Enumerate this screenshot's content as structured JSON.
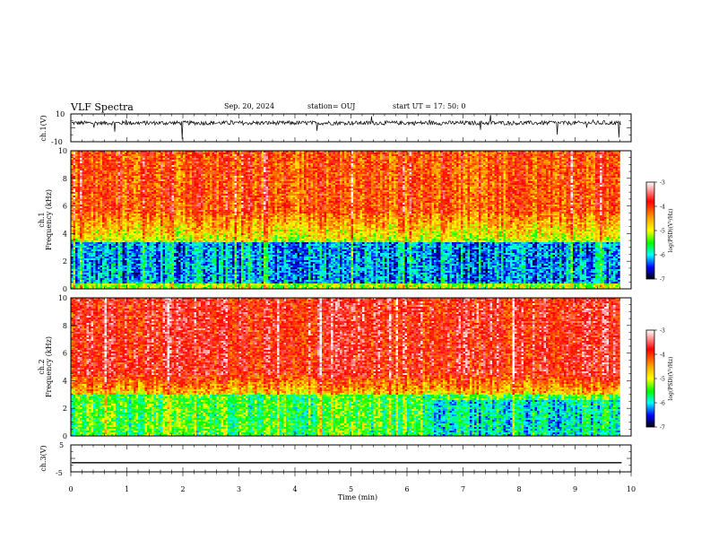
{
  "header": {
    "title": "VLF Spectra",
    "date": "Sep. 20, 2024",
    "station": "station= OUJ",
    "start": "start  UT  =   17: 50: 0"
  },
  "chart_data": [
    {
      "type": "line",
      "panel": "ch1-waveform",
      "ylabel": "ch.1(V)",
      "ylim": [
        -10,
        10
      ],
      "yticks": [
        "10",
        "-10"
      ],
      "description_values": {
        "baseline": 3.5,
        "noise_spread": 1.5
      }
    },
    {
      "type": "heatmap",
      "panel": "ch1-spectrogram",
      "ylabel_line1": "ch.1",
      "ylabel_line2": "Frequency (kHz)",
      "ylim": [
        0,
        10
      ],
      "yticks": [
        "0",
        "2",
        "4",
        "6",
        "8",
        "10"
      ],
      "xlim": [
        0,
        9.83
      ],
      "colorbar": {
        "label": "log(PSD)(V²/Hz)",
        "range": [
          -7,
          -3
        ],
        "ticks": [
          "-3",
          "-4",
          "-5",
          "-6",
          "-7"
        ]
      }
    },
    {
      "type": "heatmap",
      "panel": "ch2-spectrogram",
      "ylabel_line1": "ch.2",
      "ylabel_line2": "Frequency (kHz)",
      "ylim": [
        0,
        10
      ],
      "yticks": [
        "0",
        "2",
        "4",
        "6",
        "8",
        "10"
      ],
      "xlim": [
        0,
        9.83
      ],
      "colorbar": {
        "label": "log(PSD)(V²/Hz)",
        "range": [
          -7,
          -3
        ],
        "ticks": [
          "-3",
          "-4",
          "-5",
          "-6",
          "-7"
        ]
      }
    },
    {
      "type": "line",
      "panel": "ch3-waveform",
      "ylabel": "ch.3(V)",
      "ylim": [
        -5,
        5
      ],
      "yticks": [
        "5",
        "-5"
      ],
      "series": [
        {
          "values": [
            -1.6,
            -1.6
          ]
        }
      ]
    }
  ],
  "xaxis": {
    "label": "Time  (min)",
    "ticks": [
      "0",
      "1",
      "2",
      "3",
      "4",
      "5",
      "6",
      "7",
      "8",
      "9",
      "10"
    ],
    "range": [
      0,
      10
    ]
  }
}
